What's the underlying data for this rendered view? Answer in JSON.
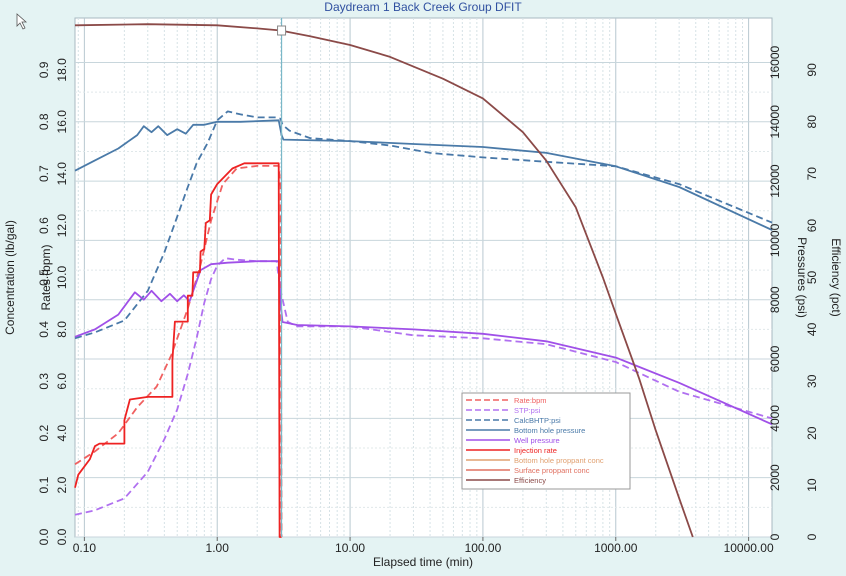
{
  "chart_data": {
    "type": "line",
    "title": "Daydream 1 Back Creek Group DFIT",
    "xlabel": "Elapsed time (min)",
    "x_scale": "log",
    "xlim": [
      0.085,
      15000
    ],
    "x_ticks": [
      {
        "v": 0.1,
        "label": "0.10"
      },
      {
        "v": 1,
        "label": "1.00"
      },
      {
        "v": 10,
        "label": "10.00"
      },
      {
        "v": 100,
        "label": "100.00"
      },
      {
        "v": 1000,
        "label": "1000.00"
      },
      {
        "v": 10000,
        "label": "10000.00"
      }
    ],
    "marker_time": 3.05,
    "axes": {
      "conc": {
        "label": "Concentration (lb/gal)",
        "min": 0,
        "max": 1.0,
        "ticks": [
          "0.0",
          "0.1",
          "0.2",
          "0.3",
          "0.4",
          "0.5",
          "0.6",
          "0.7",
          "0.8",
          "0.9"
        ],
        "step": 0.1
      },
      "rate": {
        "label": "Rates (bpm)",
        "min": 0,
        "max": 20,
        "ticks": [
          "0.0",
          "2.0",
          "4.0",
          "6.0",
          "8.0",
          "10.0",
          "12.0",
          "14.0",
          "16.0",
          "18.0"
        ],
        "step": 2
      },
      "press": {
        "label": "Pressures (psi)",
        "min": 0,
        "max": 17500,
        "ticks": [
          "0",
          "2000",
          "4000",
          "6000",
          "8000",
          "10000",
          "12000",
          "14000",
          "16000"
        ],
        "step": 2000
      },
      "eff": {
        "label": "Efficiency (pct)",
        "min": 0,
        "max": 100,
        "ticks": [
          "0",
          "10",
          "20",
          "30",
          "40",
          "50",
          "60",
          "70",
          "80",
          "90"
        ],
        "step": 10
      }
    },
    "series": [
      {
        "name": "Rate:bpm",
        "axis": "rate",
        "color": "#f06060",
        "dash": true,
        "points": [
          [
            0.085,
            2.8
          ],
          [
            0.12,
            3.3
          ],
          [
            0.18,
            4.0
          ],
          [
            0.25,
            5.0
          ],
          [
            0.35,
            5.8
          ],
          [
            0.45,
            7.0
          ],
          [
            0.6,
            8.8
          ],
          [
            0.75,
            10.5
          ],
          [
            0.9,
            12.2
          ],
          [
            1.1,
            13.6
          ],
          [
            1.4,
            14.2
          ],
          [
            2.0,
            14.3
          ],
          [
            2.9,
            14.3
          ],
          [
            3.0,
            13.5
          ],
          [
            3.05,
            0
          ]
        ]
      },
      {
        "name": "STP:psi",
        "axis": "press",
        "color": "#b070f0",
        "dash": true,
        "points": [
          [
            0.085,
            750
          ],
          [
            0.12,
            900
          ],
          [
            0.2,
            1300
          ],
          [
            0.3,
            2200
          ],
          [
            0.4,
            3300
          ],
          [
            0.5,
            4300
          ],
          [
            0.6,
            5500
          ],
          [
            0.7,
            6700
          ],
          [
            0.8,
            7900
          ],
          [
            0.9,
            8700
          ],
          [
            1.0,
            9150
          ],
          [
            1.15,
            9400
          ],
          [
            1.4,
            9350
          ],
          [
            2.0,
            9300
          ],
          [
            2.8,
            9300
          ],
          [
            3.0,
            8300
          ],
          [
            3.4,
            7250
          ],
          [
            4,
            7100
          ],
          [
            10,
            7100
          ],
          [
            30,
            6800
          ],
          [
            100,
            6700
          ],
          [
            300,
            6500
          ],
          [
            1000,
            5900
          ],
          [
            3000,
            4900
          ],
          [
            15000,
            4000
          ]
        ]
      },
      {
        "name": "CalcBHTP:psi",
        "axis": "press",
        "color": "#4878a8",
        "dash": true,
        "points": [
          [
            0.085,
            6700
          ],
          [
            0.12,
            6900
          ],
          [
            0.2,
            7300
          ],
          [
            0.3,
            8300
          ],
          [
            0.4,
            9600
          ],
          [
            0.5,
            10800
          ],
          [
            0.6,
            11800
          ],
          [
            0.7,
            12600
          ],
          [
            0.85,
            13300
          ],
          [
            1.0,
            14050
          ],
          [
            1.2,
            14350
          ],
          [
            1.5,
            14250
          ],
          [
            2.0,
            14150
          ],
          [
            2.8,
            14150
          ],
          [
            3.0,
            14100
          ],
          [
            3.1,
            13900
          ],
          [
            3.5,
            13700
          ],
          [
            5,
            13450
          ],
          [
            10,
            13350
          ],
          [
            20,
            13200
          ],
          [
            40,
            12950
          ],
          [
            100,
            12800
          ],
          [
            300,
            12650
          ],
          [
            1000,
            12500
          ],
          [
            3000,
            11900
          ],
          [
            15000,
            10600
          ]
        ]
      },
      {
        "name": "Bottom hole pressure",
        "axis": "press",
        "color": "#4a7aa8",
        "dash": false,
        "points": [
          [
            0.085,
            12350
          ],
          [
            0.12,
            12700
          ],
          [
            0.18,
            13100
          ],
          [
            0.25,
            13550
          ],
          [
            0.28,
            13850
          ],
          [
            0.32,
            13650
          ],
          [
            0.36,
            13850
          ],
          [
            0.42,
            13550
          ],
          [
            0.5,
            13750
          ],
          [
            0.58,
            13600
          ],
          [
            0.66,
            13900
          ],
          [
            0.8,
            13900
          ],
          [
            1.0,
            14000
          ],
          [
            1.5,
            14000
          ],
          [
            2.9,
            14050
          ],
          [
            3.05,
            13550
          ],
          [
            3.15,
            13400
          ],
          [
            10,
            13350
          ],
          [
            30,
            13250
          ],
          [
            100,
            13150
          ],
          [
            300,
            12950
          ],
          [
            1000,
            12500
          ],
          [
            3000,
            11800
          ],
          [
            15000,
            10350
          ]
        ]
      },
      {
        "name": "Well pressure",
        "axis": "press",
        "color": "#a050e8",
        "dash": false,
        "points": [
          [
            0.085,
            6750
          ],
          [
            0.12,
            7000
          ],
          [
            0.18,
            7500
          ],
          [
            0.24,
            8250
          ],
          [
            0.28,
            8000
          ],
          [
            0.32,
            8300
          ],
          [
            0.38,
            7950
          ],
          [
            0.44,
            8200
          ],
          [
            0.5,
            7950
          ],
          [
            0.56,
            8150
          ],
          [
            0.62,
            7950
          ],
          [
            0.75,
            9000
          ],
          [
            0.9,
            9200
          ],
          [
            1.2,
            9250
          ],
          [
            2.0,
            9300
          ],
          [
            2.9,
            9300
          ],
          [
            2.95,
            8200
          ],
          [
            3.1,
            7250
          ],
          [
            4,
            7150
          ],
          [
            10,
            7100
          ],
          [
            30,
            7000
          ],
          [
            100,
            6850
          ],
          [
            300,
            6600
          ],
          [
            1000,
            6050
          ],
          [
            3000,
            5200
          ],
          [
            15000,
            3800
          ]
        ]
      },
      {
        "name": "Injection rate",
        "axis": "rate",
        "color": "#ee2222",
        "dash": false,
        "points": [
          [
            0.085,
            1.9
          ],
          [
            0.09,
            2.4
          ],
          [
            0.11,
            3.0
          ],
          [
            0.12,
            3.5
          ],
          [
            0.13,
            3.6
          ],
          [
            0.2,
            3.6
          ],
          [
            0.2,
            4.5
          ],
          [
            0.22,
            5.3
          ],
          [
            0.3,
            5.4
          ],
          [
            0.46,
            5.4
          ],
          [
            0.46,
            6.8
          ],
          [
            0.48,
            8.3
          ],
          [
            0.6,
            8.3
          ],
          [
            0.6,
            9.3
          ],
          [
            0.65,
            9.3
          ],
          [
            0.66,
            10.2
          ],
          [
            0.74,
            10.2
          ],
          [
            0.75,
            11.0
          ],
          [
            0.8,
            11.1
          ],
          [
            0.82,
            12.1
          ],
          [
            0.88,
            12.2
          ],
          [
            0.9,
            13.2
          ],
          [
            1.0,
            13.6
          ],
          [
            1.3,
            14.2
          ],
          [
            1.6,
            14.4
          ],
          [
            2.9,
            14.4
          ],
          [
            2.95,
            0
          ],
          [
            3.05,
            0
          ]
        ]
      },
      {
        "name": "Bottom hole proppant conc",
        "axis": "conc",
        "color": "#e0a070",
        "dash": false,
        "points": []
      },
      {
        "name": "Surface proppant conc",
        "axis": "conc",
        "color": "#e07060",
        "dash": false,
        "points": []
      },
      {
        "name": "Efficiency",
        "axis": "eff",
        "color": "#8b4a48",
        "dash": false,
        "points": [
          [
            0.085,
            98.6
          ],
          [
            0.3,
            98.8
          ],
          [
            1.0,
            98.6
          ],
          [
            2.0,
            98.0
          ],
          [
            3.0,
            97.6
          ],
          [
            5,
            96.5
          ],
          [
            10,
            94.8
          ],
          [
            20,
            92.5
          ],
          [
            50,
            88.3
          ],
          [
            100,
            84.5
          ],
          [
            200,
            78
          ],
          [
            300,
            72.5
          ],
          [
            500,
            63.5
          ],
          [
            800,
            50
          ],
          [
            1000,
            43
          ],
          [
            1500,
            30.5
          ],
          [
            2000,
            20.5
          ],
          [
            3000,
            7.5
          ],
          [
            3800,
            0
          ]
        ]
      }
    ],
    "legend": {
      "position": "bottom-right"
    },
    "grid": true
  }
}
